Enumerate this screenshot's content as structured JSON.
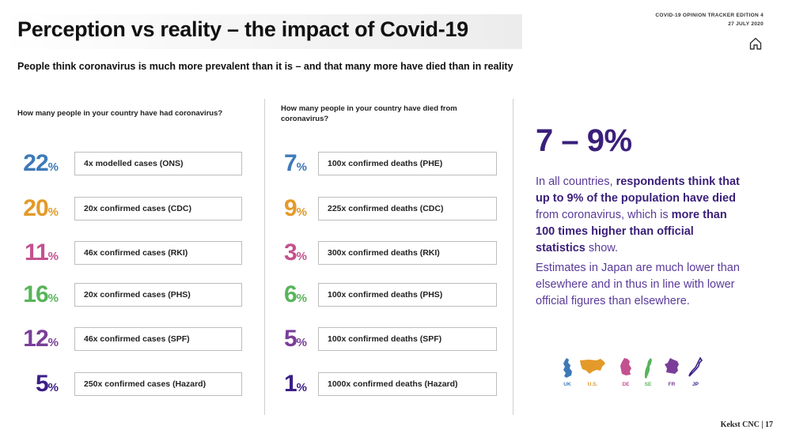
{
  "header": {
    "title": "Perception vs reality – the impact of Covid-19",
    "edition_line1": "COVID-19 OPINION TRACKER EDITION 4",
    "edition_line2": "27 JULY 2020",
    "home_icon": "home-icon"
  },
  "subtitle": "People think coronavirus is much more prevalent than it is – and that many more have died than in reality",
  "cases": {
    "question": "How many people in your country have had coronavirus?",
    "rows": [
      {
        "value": "22",
        "unit": "%",
        "color": "#3e7ab8",
        "label": "4x modelled cases (ONS)"
      },
      {
        "value": "20",
        "unit": "%",
        "color": "#e39a2a",
        "label": "20x confirmed cases (CDC)"
      },
      {
        "value": "11",
        "unit": "%",
        "color": "#c4518f",
        "label": "46x confirmed cases (RKI)"
      },
      {
        "value": "16",
        "unit": "%",
        "color": "#58b45a",
        "label": "20x confirmed cases (PHS)"
      },
      {
        "value": "12",
        "unit": "%",
        "color": "#7a3e98",
        "label": "46x confirmed cases (SPF)"
      },
      {
        "value": "5",
        "unit": "%",
        "color": "#3b1f86",
        "label": "250x confirmed cases (Hazard)"
      }
    ]
  },
  "deaths": {
    "question": "How many people in your country have died from coronavirus?",
    "rows": [
      {
        "value": "7",
        "unit": "%",
        "color": "#3e7ab8",
        "label": "100x confirmed deaths (PHE)"
      },
      {
        "value": "9",
        "unit": "%",
        "color": "#e39a2a",
        "label": "225x confirmed deaths (CDC)"
      },
      {
        "value": "3",
        "unit": "%",
        "color": "#c4518f",
        "label": "300x confirmed deaths (RKI)"
      },
      {
        "value": "6",
        "unit": "%",
        "color": "#58b45a",
        "label": "100x confirmed deaths (PHS)"
      },
      {
        "value": "5",
        "unit": "%",
        "color": "#7a3e98",
        "label": "100x confirmed deaths (SPF)"
      },
      {
        "value": "1",
        "unit": "%",
        "color": "#3b1f86",
        "label": "1000x confirmed deaths (Hazard)"
      }
    ]
  },
  "summary": {
    "range": "7 – 9%",
    "p1_a": "In all countries, ",
    "p1_b": "respondents think that up to 9% of the population have died",
    "p1_c": " from coronavirus, which is ",
    "p1_d": "more than 100 times higher than official statistics",
    "p1_e": " show.",
    "p2": "Estimates in Japan are much lower than elsewhere and in thus in line with lower official figures than elsewhere."
  },
  "countries": [
    {
      "code": "UK",
      "color": "#3e7ab8",
      "icon": "uk-map-icon"
    },
    {
      "code": "U.S.",
      "color": "#e39a2a",
      "icon": "us-map-icon"
    },
    {
      "code": "DE",
      "color": "#c4518f",
      "icon": "germany-map-icon"
    },
    {
      "code": "SE",
      "color": "#58b45a",
      "icon": "sweden-map-icon"
    },
    {
      "code": "FR",
      "color": "#7a3e98",
      "icon": "france-map-icon"
    },
    {
      "code": "JP",
      "color": "#3b1f86",
      "icon": "japan-map-icon"
    }
  ],
  "footer": "Kekst CNC | 17"
}
